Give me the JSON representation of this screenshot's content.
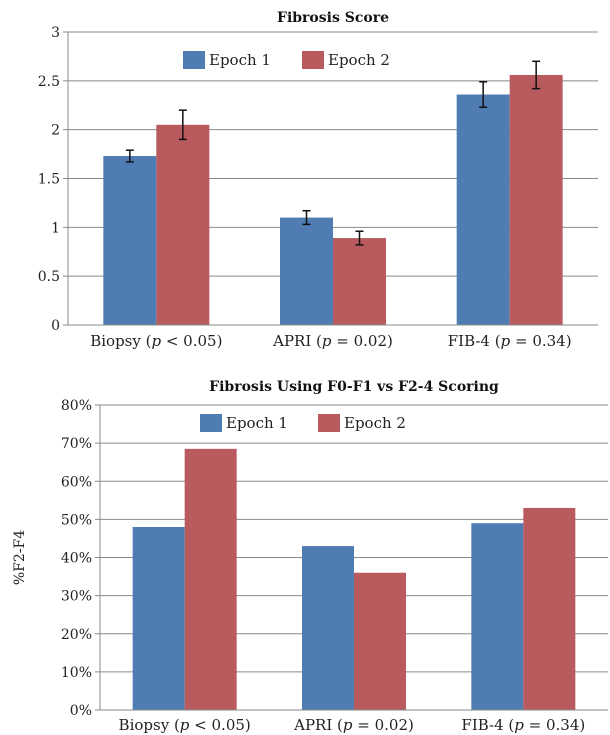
{
  "colors": {
    "epoch1": "#4f7db3",
    "epoch2": "#b85a5e"
  },
  "chart_data": [
    {
      "type": "bar",
      "title": "Fibrosis Score",
      "ylabel": "",
      "categories": [
        {
          "name": "Biopsy",
          "p_label": "p < 0.05"
        },
        {
          "name": "APRI",
          "p_label": "p = 0.02"
        },
        {
          "name": "FIB-4",
          "p_label": "p = 0.34"
        }
      ],
      "ylim": [
        0,
        3
      ],
      "yticks": [
        0,
        0.5,
        1,
        1.5,
        2,
        2.5,
        3
      ],
      "ytick_labels": [
        "0",
        "0.5",
        "1",
        "1.5",
        "2",
        "2.5",
        "3"
      ],
      "grid": true,
      "legend_position": "top-center",
      "series": [
        {
          "name": "Epoch 1",
          "values": [
            1.73,
            1.1,
            2.36
          ],
          "errors": [
            0.06,
            0.07,
            0.13
          ]
        },
        {
          "name": "Epoch 2",
          "values": [
            2.05,
            0.89,
            2.56
          ],
          "errors": [
            0.15,
            0.07,
            0.14
          ]
        }
      ]
    },
    {
      "type": "bar",
      "title": "Fibrosis Using F0-F1 vs F2-4 Scoring",
      "ylabel": "%F2-F4",
      "categories": [
        {
          "name": "Biopsy",
          "p_label": "p < 0.05"
        },
        {
          "name": "APRI",
          "p_label": "p = 0.02"
        },
        {
          "name": "FIB-4",
          "p_label": "p = 0.34"
        }
      ],
      "ylim": [
        0,
        80
      ],
      "yticks": [
        0,
        10,
        20,
        30,
        40,
        50,
        60,
        70,
        80
      ],
      "ytick_labels": [
        "0%",
        "10%",
        "20%",
        "30%",
        "40%",
        "50%",
        "60%",
        "70%",
        "80%"
      ],
      "grid": true,
      "legend_position": "top-center",
      "series": [
        {
          "name": "Epoch 1",
          "values": [
            48,
            43,
            49
          ]
        },
        {
          "name": "Epoch 2",
          "values": [
            68.5,
            36,
            53
          ]
        }
      ]
    }
  ]
}
